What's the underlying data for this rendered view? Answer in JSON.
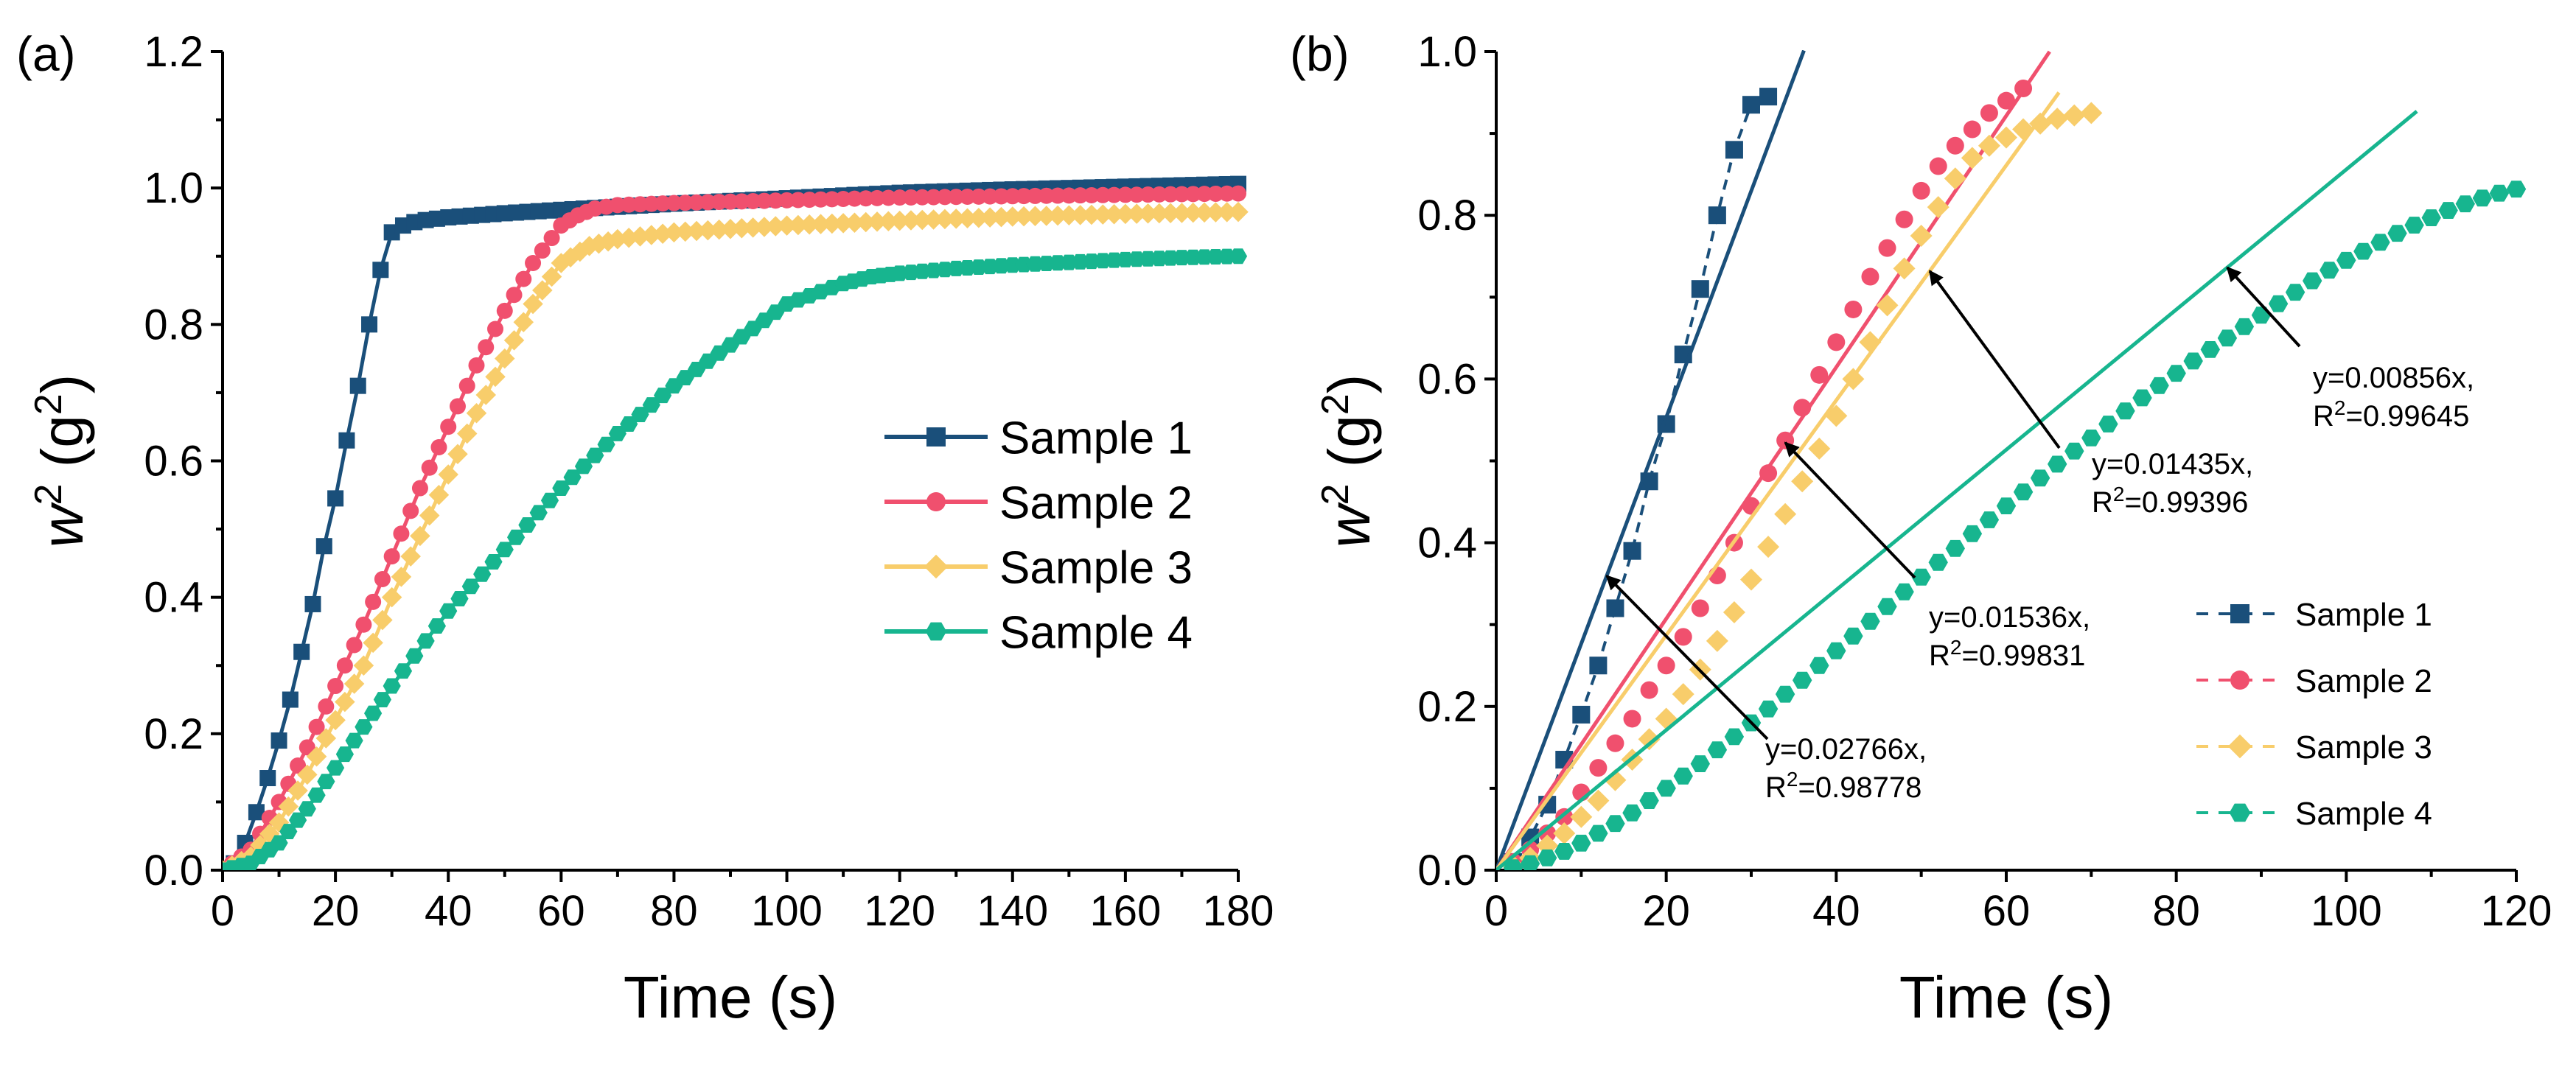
{
  "chart_data": [
    {
      "type": "line",
      "panel_label": "(a)",
      "xlabel": "Time (s)",
      "ylabel_base": "w",
      "ylabel_sup": "2",
      "ylabel_unit_open": " (g",
      "ylabel_unit_sup": "2",
      "ylabel_unit_close": ")",
      "xlim": [
        0,
        180
      ],
      "ylim": [
        0,
        1.2
      ],
      "xticks": [
        "0",
        "20",
        "40",
        "60",
        "80",
        "100",
        "120",
        "140",
        "160",
        "180"
      ],
      "yticks": [
        "0.0",
        "0.2",
        "0.4",
        "0.6",
        "0.8",
        "1.0",
        "1.2"
      ],
      "legend_position": "center-right",
      "series": [
        {
          "name": "Sample 1",
          "color": "#1a4f7a",
          "marker": "square",
          "x": [
            0,
            2,
            4,
            6,
            8,
            10,
            12,
            14,
            16,
            18,
            20,
            22,
            24,
            26,
            28,
            30,
            32,
            34,
            36,
            40,
            50,
            60,
            80,
            100,
            120,
            140,
            160,
            180
          ],
          "y": [
            0,
            0.01,
            0.04,
            0.085,
            0.135,
            0.19,
            0.25,
            0.32,
            0.39,
            0.475,
            0.545,
            0.63,
            0.71,
            0.8,
            0.88,
            0.935,
            0.945,
            0.95,
            0.953,
            0.957,
            0.963,
            0.968,
            0.977,
            0.985,
            0.993,
            0.998,
            1.002,
            1.006
          ]
        },
        {
          "name": "Sample 2",
          "color": "#f0506e",
          "marker": "circle",
          "x": [
            0,
            5,
            10,
            15,
            20,
            25,
            30,
            35,
            40,
            45,
            50,
            55,
            60,
            63,
            66,
            70,
            80,
            100,
            120,
            140,
            160,
            180
          ],
          "y": [
            0,
            0.03,
            0.1,
            0.18,
            0.27,
            0.36,
            0.46,
            0.56,
            0.65,
            0.74,
            0.82,
            0.89,
            0.945,
            0.96,
            0.97,
            0.975,
            0.978,
            0.982,
            0.986,
            0.988,
            0.99,
            0.992
          ]
        },
        {
          "name": "Sample 3",
          "color": "#f8cd6b",
          "marker": "diamond",
          "x": [
            0,
            5,
            10,
            15,
            20,
            25,
            30,
            35,
            40,
            45,
            50,
            55,
            60,
            65,
            70,
            80,
            100,
            120,
            140,
            160,
            180
          ],
          "y": [
            0,
            0.02,
            0.07,
            0.14,
            0.22,
            0.3,
            0.4,
            0.49,
            0.58,
            0.67,
            0.75,
            0.83,
            0.89,
            0.915,
            0.925,
            0.935,
            0.945,
            0.952,
            0.958,
            0.962,
            0.965
          ]
        },
        {
          "name": "Sample 4",
          "color": "#17b58f",
          "marker": "hexagon",
          "x": [
            0,
            5,
            10,
            15,
            20,
            25,
            30,
            40,
            50,
            60,
            70,
            80,
            90,
            100,
            110,
            115,
            120,
            130,
            140,
            150,
            160,
            170,
            180
          ],
          "y": [
            0,
            0.01,
            0.04,
            0.09,
            0.15,
            0.21,
            0.27,
            0.38,
            0.47,
            0.56,
            0.64,
            0.71,
            0.77,
            0.83,
            0.86,
            0.87,
            0.875,
            0.882,
            0.887,
            0.891,
            0.895,
            0.898,
            0.9
          ]
        }
      ]
    },
    {
      "type": "scatter",
      "panel_label": "(b)",
      "xlabel": "Time (s)",
      "ylabel_base": "w",
      "ylabel_sup": "2",
      "ylabel_unit_open": " (g",
      "ylabel_unit_sup": "2",
      "ylabel_unit_close": ")",
      "xlim": [
        0,
        120
      ],
      "ylim": [
        0,
        1.0
      ],
      "xticks": [
        "0",
        "20",
        "40",
        "60",
        "80",
        "100",
        "120"
      ],
      "yticks": [
        "0.0",
        "0.2",
        "0.4",
        "0.6",
        "0.8",
        "1.0"
      ],
      "legend_position": "bottom-right",
      "series": [
        {
          "name": "Sample 1",
          "color": "#1a4f7a",
          "marker": "square",
          "x": [
            2,
            4,
            6,
            8,
            10,
            12,
            14,
            16,
            18,
            20,
            22,
            24,
            26,
            28,
            30,
            32
          ],
          "y": [
            0.01,
            0.04,
            0.08,
            0.135,
            0.19,
            0.25,
            0.32,
            0.39,
            0.475,
            0.545,
            0.63,
            0.71,
            0.8,
            0.88,
            0.935,
            0.945
          ],
          "fit": {
            "slope": 0.02766,
            "x_end": 36.2,
            "label_eq": "y=0.02766x,",
            "label_r_prefix": "R",
            "label_r_sup": "2",
            "label_r_value": "=0.98778"
          }
        },
        {
          "name": "Sample 2",
          "color": "#f0506e",
          "marker": "circle",
          "x": [
            2,
            4,
            6,
            8,
            10,
            12,
            14,
            16,
            18,
            20,
            22,
            24,
            26,
            28,
            30,
            32,
            34,
            36,
            38,
            40,
            42,
            44,
            46,
            48,
            50,
            52,
            54,
            56,
            58,
            60,
            62
          ],
          "y": [
            0.01,
            0.025,
            0.045,
            0.065,
            0.095,
            0.125,
            0.155,
            0.185,
            0.22,
            0.25,
            0.285,
            0.32,
            0.36,
            0.4,
            0.445,
            0.485,
            0.525,
            0.565,
            0.605,
            0.645,
            0.685,
            0.725,
            0.76,
            0.795,
            0.83,
            0.86,
            0.885,
            0.905,
            0.925,
            0.94,
            0.955
          ],
          "fit": {
            "slope": 0.01536,
            "x_end": 65.1,
            "label_eq": "y=0.01536x,",
            "label_r_prefix": "R",
            "label_r_sup": "2",
            "label_r_value": "=0.99831"
          }
        },
        {
          "name": "Sample 3",
          "color": "#f8cd6b",
          "marker": "diamond",
          "x": [
            2,
            4,
            6,
            8,
            10,
            12,
            14,
            16,
            18,
            20,
            22,
            24,
            26,
            28,
            30,
            32,
            34,
            36,
            38,
            40,
            42,
            44,
            46,
            48,
            50,
            52,
            54,
            56,
            58,
            60,
            62,
            64,
            66,
            68,
            70
          ],
          "y": [
            0.005,
            0.015,
            0.03,
            0.045,
            0.065,
            0.085,
            0.11,
            0.135,
            0.16,
            0.185,
            0.215,
            0.245,
            0.28,
            0.315,
            0.355,
            0.395,
            0.435,
            0.475,
            0.515,
            0.555,
            0.6,
            0.645,
            0.69,
            0.735,
            0.775,
            0.81,
            0.845,
            0.87,
            0.885,
            0.895,
            0.905,
            0.912,
            0.918,
            0.922,
            0.925
          ],
          "fit": {
            "slope": 0.01435,
            "x_end": 66.2,
            "label_eq": "y=0.01435x,",
            "label_r_prefix": "R",
            "label_r_sup": "2",
            "label_r_value": "=0.99396"
          }
        },
        {
          "name": "Sample 4",
          "color": "#17b58f",
          "marker": "hexagon",
          "x": [
            2,
            4,
            6,
            8,
            10,
            12,
            14,
            16,
            18,
            20,
            22,
            24,
            26,
            28,
            30,
            32,
            34,
            36,
            38,
            40,
            42,
            44,
            46,
            48,
            50,
            52,
            54,
            56,
            58,
            60,
            62,
            64,
            66,
            68,
            70,
            72,
            74,
            76,
            78,
            80,
            82,
            84,
            86,
            88,
            90,
            92,
            94,
            96,
            98,
            100,
            102,
            104,
            106,
            108,
            110,
            112,
            114,
            116,
            118,
            120
          ],
          "y": [
            0.003,
            0.008,
            0.015,
            0.023,
            0.033,
            0.045,
            0.057,
            0.07,
            0.085,
            0.1,
            0.115,
            0.13,
            0.147,
            0.163,
            0.18,
            0.197,
            0.215,
            0.232,
            0.25,
            0.268,
            0.286,
            0.304,
            0.322,
            0.34,
            0.358,
            0.376,
            0.393,
            0.411,
            0.428,
            0.445,
            0.462,
            0.479,
            0.496,
            0.512,
            0.528,
            0.545,
            0.561,
            0.577,
            0.592,
            0.607,
            0.622,
            0.636,
            0.65,
            0.664,
            0.678,
            0.692,
            0.706,
            0.72,
            0.733,
            0.745,
            0.756,
            0.767,
            0.778,
            0.788,
            0.797,
            0.806,
            0.814,
            0.821,
            0.827,
            0.832
          ],
          "fit": {
            "slope": 0.00856,
            "x_end": 108.3,
            "label_eq": "y=0.00856x,",
            "label_r_prefix": "R",
            "label_r_sup": "2",
            "label_r_value": "=0.99645"
          }
        }
      ]
    }
  ]
}
